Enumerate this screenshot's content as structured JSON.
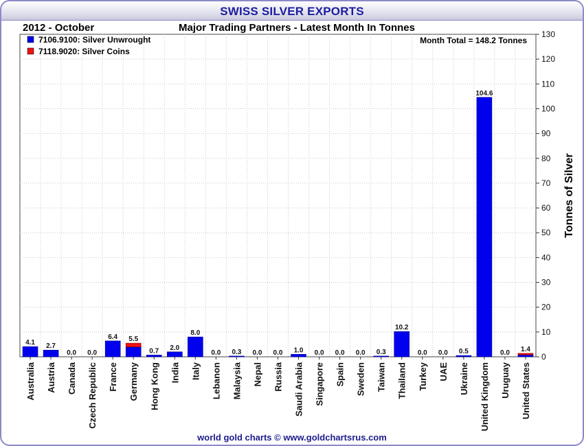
{
  "title": "SWISS SILVER EXPORTS",
  "period_label": "2012 - October",
  "footer": "world gold charts © www.goldchartsrus.com",
  "colors": {
    "unwrought": "#0000ee",
    "coins": "#ee1111",
    "title": "#1c1ca0",
    "grid": "#c8c8c8"
  },
  "chart_data": {
    "type": "bar",
    "stacked": true,
    "title": "Major Trading Partners - Latest Month In Tonnes",
    "annotation": "Month Total = 148.2 Tonnes",
    "ylabel": "Tonnes of Silver",
    "xlabel": "",
    "ylim": [
      0,
      130
    ],
    "yticks": [
      0,
      10,
      20,
      30,
      40,
      50,
      60,
      70,
      80,
      90,
      100,
      110,
      120,
      130
    ],
    "y_axis_side": "right",
    "grid": true,
    "legend_position": "top-left",
    "categories": [
      "Australia",
      "Austria",
      "Canada",
      "Czech Republic",
      "France",
      "Germany",
      "Hong Kong",
      "India",
      "Italy",
      "Lebanon",
      "Malaysia",
      "Nepal",
      "Russia",
      "Saudi Arabia",
      "Singapore",
      "Spain",
      "Sweden",
      "Taiwan",
      "Thailand",
      "Turkey",
      "UAE",
      "Ukraine",
      "United Kingdom",
      "Uruguay",
      "United States"
    ],
    "series": [
      {
        "name": "7106.9100: Silver Unwrought",
        "values": [
          4.1,
          2.7,
          0.0,
          0.0,
          6.4,
          4.0,
          0.7,
          2.0,
          8.0,
          0.0,
          0.3,
          0.0,
          0.0,
          1.0,
          0.0,
          0.0,
          0.0,
          0.3,
          10.2,
          0.0,
          0.0,
          0.5,
          104.6,
          0.0,
          0.8
        ]
      },
      {
        "name": "7118.9020: Silver Coins",
        "values": [
          0.0,
          0.0,
          0.0,
          0.0,
          0.0,
          1.5,
          0.0,
          0.0,
          0.0,
          0.0,
          0.0,
          0.0,
          0.0,
          0.0,
          0.0,
          0.0,
          0.0,
          0.0,
          0.0,
          0.0,
          0.0,
          0.0,
          0.0,
          0.0,
          0.6
        ]
      }
    ],
    "totals": [
      "4.1",
      "2.7",
      "0.0",
      "0.0",
      "6.4",
      "5.5",
      "0.7",
      "2.0",
      "8.0",
      "0.0",
      "0.3",
      "0.0",
      "0.0",
      "1.0",
      "0.0",
      "0.0",
      "0.0",
      "0.3",
      "10.2",
      "0.0",
      "0.0",
      "0.5",
      "104.6",
      "0.0",
      "1.4"
    ]
  }
}
